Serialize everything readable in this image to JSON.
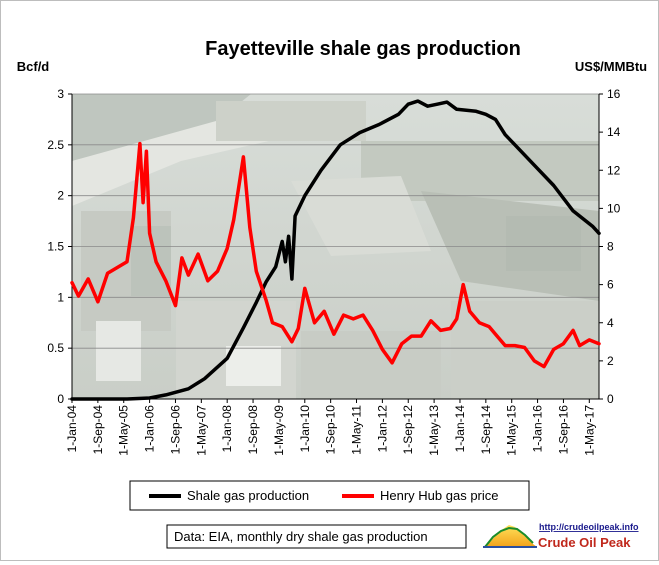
{
  "chart_data": {
    "type": "line",
    "title": "Fayetteville shale gas production",
    "y_left_unit": "Bcf/d",
    "y_right_unit": "US$/MMBtu",
    "y_left_range": [
      0,
      3
    ],
    "y_left_ticks": [
      "0",
      "0.5",
      "1",
      "1.5",
      "2",
      "2.5",
      "3"
    ],
    "y_right_range": [
      0,
      16
    ],
    "y_right_ticks": [
      "0",
      "2",
      "4",
      "6",
      "8",
      "10",
      "12",
      "14",
      "16"
    ],
    "x_range": [
      "2004-01",
      "2017-08"
    ],
    "x_ticks": [
      "1-Jan-04",
      "1-Sep-04",
      "1-May-05",
      "1-Jan-06",
      "1-Sep-06",
      "1-May-07",
      "1-Jan-08",
      "1-Sep-08",
      "1-May-09",
      "1-Jan-10",
      "1-Sep-10",
      "1-May-11",
      "1-Jan-12",
      "1-Sep-12",
      "1-May-13",
      "1-Jan-14",
      "1-Sep-14",
      "1-May-15",
      "1-Jan-16",
      "1-Sep-16",
      "1-May-17"
    ],
    "grid": true,
    "legend_position": "bottom",
    "series": [
      {
        "name": "Shale gas production",
        "axis": "left",
        "color": "#000000",
        "points": [
          [
            "2004-01",
            0
          ],
          [
            "2005-06",
            0
          ],
          [
            "2006-01",
            0.01
          ],
          [
            "2006-06",
            0.04
          ],
          [
            "2007-01",
            0.1
          ],
          [
            "2007-06",
            0.2
          ],
          [
            "2008-01",
            0.4
          ],
          [
            "2008-06",
            0.7
          ],
          [
            "2008-10",
            0.95
          ],
          [
            "2009-01",
            1.15
          ],
          [
            "2009-04",
            1.3
          ],
          [
            "2009-06",
            1.55
          ],
          [
            "2009-07",
            1.35
          ],
          [
            "2009-08",
            1.6
          ],
          [
            "2009-09",
            1.18
          ],
          [
            "2009-10",
            1.8
          ],
          [
            "2010-01",
            2.0
          ],
          [
            "2010-06",
            2.25
          ],
          [
            "2010-12",
            2.5
          ],
          [
            "2011-06",
            2.62
          ],
          [
            "2011-12",
            2.7
          ],
          [
            "2012-06",
            2.8
          ],
          [
            "2012-09",
            2.9
          ],
          [
            "2012-12",
            2.93
          ],
          [
            "2013-03",
            2.88
          ],
          [
            "2013-06",
            2.9
          ],
          [
            "2013-09",
            2.92
          ],
          [
            "2013-12",
            2.85
          ],
          [
            "2014-03",
            2.84
          ],
          [
            "2014-06",
            2.83
          ],
          [
            "2014-09",
            2.8
          ],
          [
            "2014-12",
            2.75
          ],
          [
            "2015-03",
            2.6
          ],
          [
            "2015-06",
            2.5
          ],
          [
            "2015-12",
            2.3
          ],
          [
            "2016-06",
            2.1
          ],
          [
            "2016-12",
            1.85
          ],
          [
            "2017-06",
            1.7
          ],
          [
            "2017-08",
            1.63
          ]
        ]
      },
      {
        "name": "Henry Hub gas price",
        "axis": "right",
        "color": "#ff0000",
        "points": [
          [
            "2004-01",
            6.1
          ],
          [
            "2004-03",
            5.4
          ],
          [
            "2004-06",
            6.3
          ],
          [
            "2004-09",
            5.1
          ],
          [
            "2004-12",
            6.6
          ],
          [
            "2005-03",
            6.9
          ],
          [
            "2005-06",
            7.2
          ],
          [
            "2005-08",
            9.5
          ],
          [
            "2005-10",
            13.4
          ],
          [
            "2005-11",
            10.3
          ],
          [
            "2005-12",
            13.0
          ],
          [
            "2006-01",
            8.7
          ],
          [
            "2006-03",
            7.2
          ],
          [
            "2006-06",
            6.2
          ],
          [
            "2006-09",
            4.9
          ],
          [
            "2006-11",
            7.4
          ],
          [
            "2007-01",
            6.5
          ],
          [
            "2007-04",
            7.6
          ],
          [
            "2007-07",
            6.2
          ],
          [
            "2007-10",
            6.7
          ],
          [
            "2008-01",
            7.9
          ],
          [
            "2008-03",
            9.4
          ],
          [
            "2008-06",
            12.7
          ],
          [
            "2008-08",
            9.0
          ],
          [
            "2008-10",
            6.7
          ],
          [
            "2009-01",
            5.2
          ],
          [
            "2009-03",
            4.0
          ],
          [
            "2009-06",
            3.8
          ],
          [
            "2009-09",
            3.0
          ],
          [
            "2009-11",
            3.7
          ],
          [
            "2010-01",
            5.8
          ],
          [
            "2010-04",
            4.0
          ],
          [
            "2010-07",
            4.6
          ],
          [
            "2010-10",
            3.4
          ],
          [
            "2011-01",
            4.4
          ],
          [
            "2011-04",
            4.2
          ],
          [
            "2011-07",
            4.4
          ],
          [
            "2011-10",
            3.6
          ],
          [
            "2012-01",
            2.6
          ],
          [
            "2012-04",
            1.9
          ],
          [
            "2012-07",
            2.9
          ],
          [
            "2012-10",
            3.3
          ],
          [
            "2013-01",
            3.3
          ],
          [
            "2013-04",
            4.1
          ],
          [
            "2013-07",
            3.6
          ],
          [
            "2013-10",
            3.7
          ],
          [
            "2013-12",
            4.2
          ],
          [
            "2014-02",
            6.0
          ],
          [
            "2014-04",
            4.6
          ],
          [
            "2014-07",
            4.0
          ],
          [
            "2014-10",
            3.8
          ],
          [
            "2014-12",
            3.4
          ],
          [
            "2015-03",
            2.8
          ],
          [
            "2015-06",
            2.8
          ],
          [
            "2015-09",
            2.7
          ],
          [
            "2015-12",
            2.0
          ],
          [
            "2016-03",
            1.7
          ],
          [
            "2016-06",
            2.6
          ],
          [
            "2016-09",
            2.9
          ],
          [
            "2016-12",
            3.6
          ],
          [
            "2017-02",
            2.8
          ],
          [
            "2017-05",
            3.1
          ],
          [
            "2017-08",
            2.9
          ]
        ]
      }
    ]
  },
  "source_note": "Data: EIA, monthly dry shale gas production",
  "logo": {
    "url": "http://crudeoilpeak.info",
    "name": "Crude Oil Peak"
  }
}
